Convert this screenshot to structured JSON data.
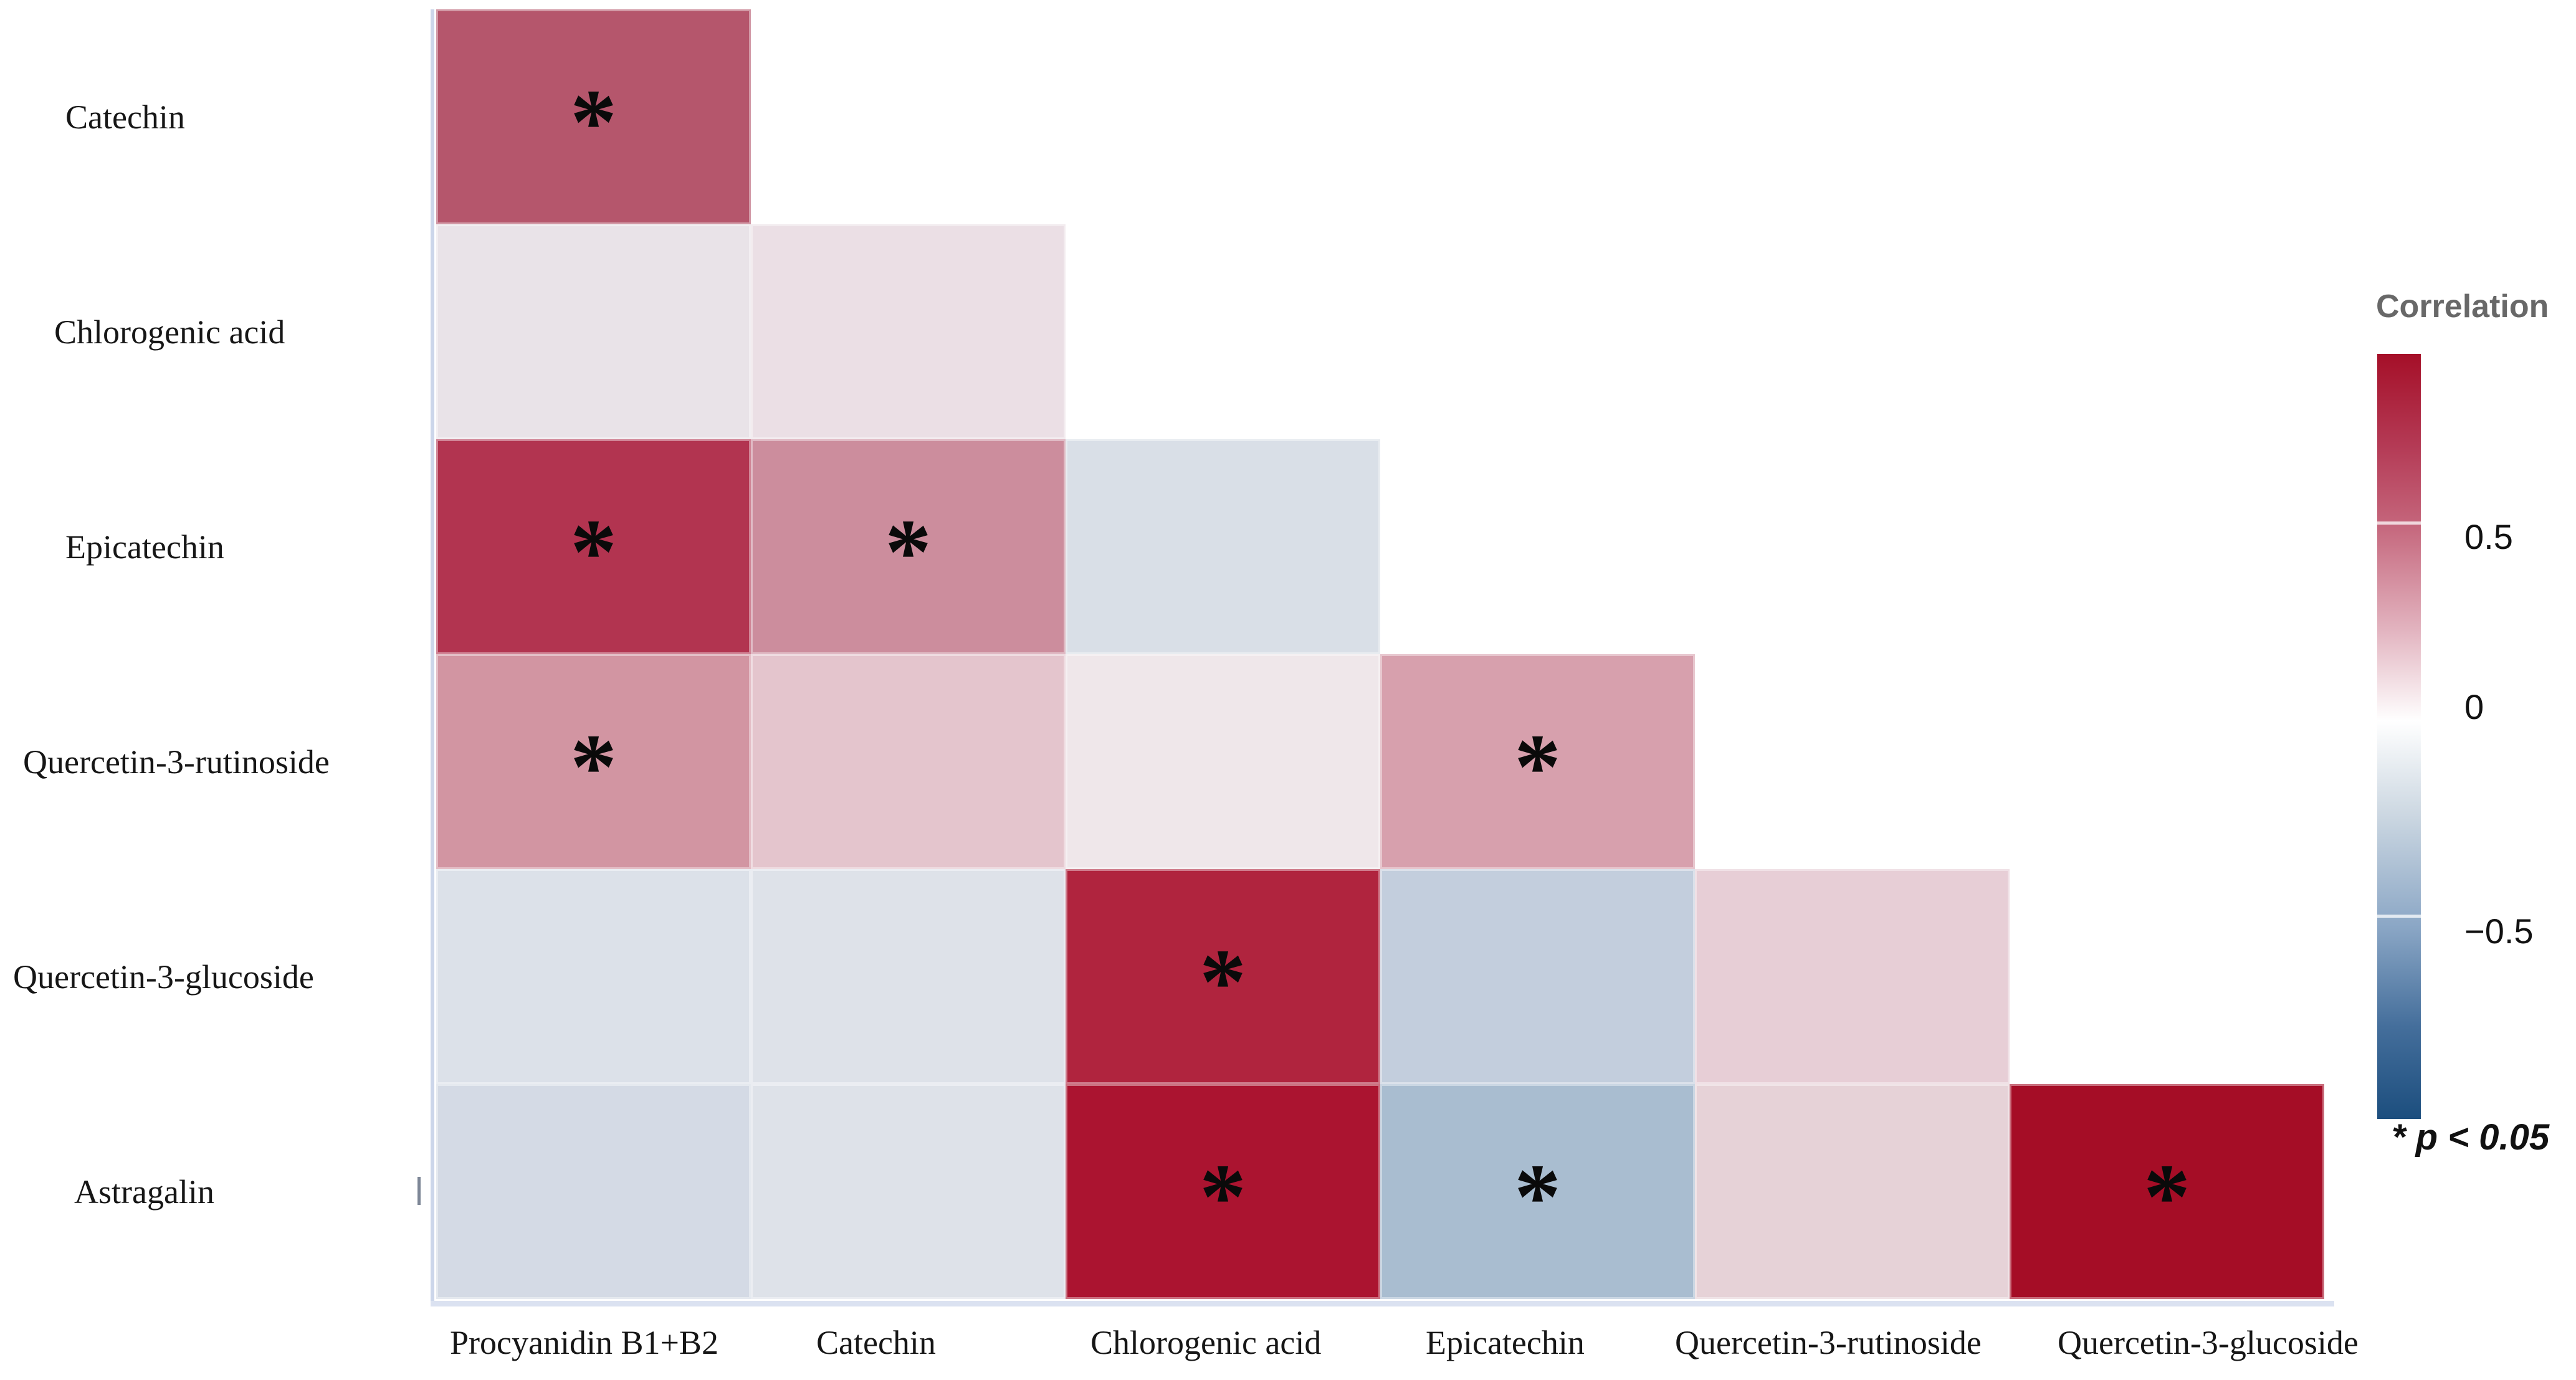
{
  "chart_data": {
    "type": "heatmap",
    "variant": "lower-triangular correlation matrix",
    "title": "",
    "rows": [
      "Catechin",
      "Chlorogenic acid",
      "Epicatechin",
      "Quercetin-3-rutinoside",
      "Quercetin-3-glucoside",
      "Astragalin"
    ],
    "columns": [
      "Procyanidin B1+B2",
      "Catechin",
      "Chlorogenic acid",
      "Epicatechin",
      "Quercetin-3-rutinoside",
      "Quercetin-3-glucoside"
    ],
    "legend": {
      "title": "Correlation",
      "position": "right",
      "domain": [
        -1,
        1
      ],
      "ticks": [
        0.5,
        0,
        -0.5
      ],
      "tick_labels": [
        "0.5",
        "0",
        "−0.5"
      ],
      "top_color": "#a50f28",
      "mid_color": "#ffffff",
      "bottom_color": "#1c4e7e"
    },
    "significance_note": "* p < 0.05",
    "cells": [
      {
        "row_index": 0,
        "col_index": 0,
        "row": "Catechin",
        "column": "Procyanidin B1+B2",
        "r": 0.65,
        "significant": true,
        "color": "#b5566c"
      },
      {
        "row_index": 1,
        "col_index": 0,
        "row": "Chlorogenic acid",
        "column": "Procyanidin B1+B2",
        "r": 0.06,
        "significant": false,
        "color": "#e9e3e8"
      },
      {
        "row_index": 1,
        "col_index": 1,
        "row": "Chlorogenic acid",
        "column": "Catechin",
        "r": 0.12,
        "significant": false,
        "color": "#ebdfe5"
      },
      {
        "row_index": 2,
        "col_index": 0,
        "row": "Epicatechin",
        "column": "Procyanidin B1+B2",
        "r": 0.8,
        "significant": true,
        "color": "#b23450"
      },
      {
        "row_index": 2,
        "col_index": 1,
        "row": "Epicatechin",
        "column": "Catechin",
        "r": 0.45,
        "significant": true,
        "color": "#cc8d9d"
      },
      {
        "row_index": 2,
        "col_index": 2,
        "row": "Epicatechin",
        "column": "Chlorogenic acid",
        "r": -0.12,
        "significant": false,
        "color": "#d9dfe7"
      },
      {
        "row_index": 3,
        "col_index": 0,
        "row": "Quercetin-3-rutinoside",
        "column": "Procyanidin B1+B2",
        "r": 0.45,
        "significant": true,
        "color": "#d295a2"
      },
      {
        "row_index": 3,
        "col_index": 1,
        "row": "Quercetin-3-rutinoside",
        "column": "Catechin",
        "r": 0.22,
        "significant": false,
        "color": "#e4c5cd"
      },
      {
        "row_index": 3,
        "col_index": 2,
        "row": "Quercetin-3-rutinoside",
        "column": "Chlorogenic acid",
        "r": 0.04,
        "significant": false,
        "color": "#efe7ea"
      },
      {
        "row_index": 3,
        "col_index": 3,
        "row": "Quercetin-3-rutinoside",
        "column": "Epicatechin",
        "r": 0.4,
        "significant": true,
        "color": "#d7a0ad"
      },
      {
        "row_index": 4,
        "col_index": 0,
        "row": "Quercetin-3-glucoside",
        "column": "Procyanidin B1+B2",
        "r": -0.1,
        "significant": false,
        "color": "#dce1e9"
      },
      {
        "row_index": 4,
        "col_index": 1,
        "row": "Quercetin-3-glucoside",
        "column": "Catechin",
        "r": -0.08,
        "significant": false,
        "color": "#dee2e9"
      },
      {
        "row_index": 4,
        "col_index": 2,
        "row": "Quercetin-3-glucoside",
        "column": "Chlorogenic acid",
        "r": 0.85,
        "significant": true,
        "color": "#b0243e"
      },
      {
        "row_index": 4,
        "col_index": 3,
        "row": "Quercetin-3-glucoside",
        "column": "Epicatechin",
        "r": -0.25,
        "significant": false,
        "color": "#c3cedd"
      },
      {
        "row_index": 4,
        "col_index": 4,
        "row": "Quercetin-3-glucoside",
        "column": "Quercetin-3-rutinoside",
        "r": 0.18,
        "significant": false,
        "color": "#e7ced6"
      },
      {
        "row_index": 5,
        "col_index": 0,
        "row": "Astragalin",
        "column": "Procyanidin B1+B2",
        "r": -0.15,
        "significant": false,
        "color": "#d4dae5"
      },
      {
        "row_index": 5,
        "col_index": 1,
        "row": "Astragalin",
        "column": "Catechin",
        "r": -0.09,
        "significant": false,
        "color": "#dee2e9"
      },
      {
        "row_index": 5,
        "col_index": 2,
        "row": "Astragalin",
        "column": "Chlorogenic acid",
        "r": 0.9,
        "significant": true,
        "color": "#ab1430"
      },
      {
        "row_index": 5,
        "col_index": 3,
        "row": "Astragalin",
        "column": "Epicatechin",
        "r": -0.35,
        "significant": true,
        "color": "#a9bdd0"
      },
      {
        "row_index": 5,
        "col_index": 4,
        "row": "Astragalin",
        "column": "Quercetin-3-rutinoside",
        "r": 0.16,
        "significant": false,
        "color": "#e6d2d7"
      },
      {
        "row_index": 5,
        "col_index": 5,
        "row": "Astragalin",
        "column": "Quercetin-3-glucoside",
        "r": 0.95,
        "significant": true,
        "color": "#a50d26"
      }
    ]
  },
  "colors": {
    "background": "#ffffff",
    "label_text": "#161616",
    "legend_title_text": "#686868",
    "axis_line": "#ccd6ea"
  }
}
